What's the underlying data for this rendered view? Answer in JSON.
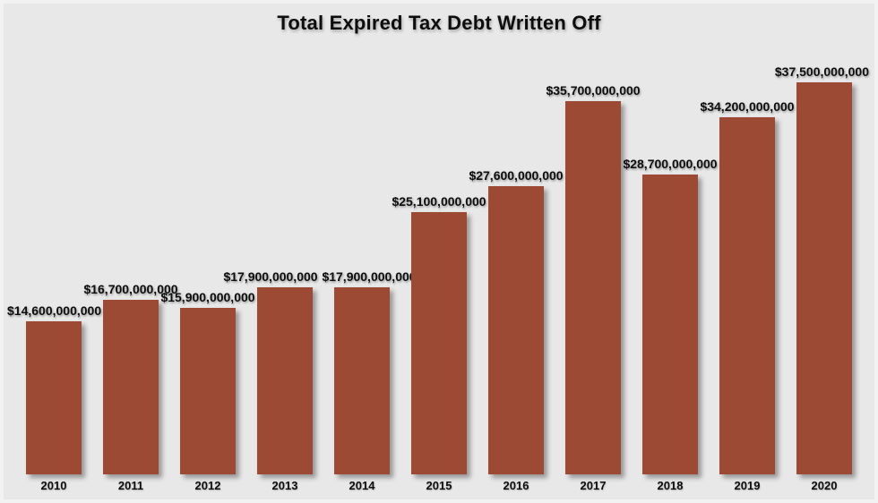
{
  "title": "Total Expired Tax Debt Written Off",
  "chart_data": {
    "type": "bar",
    "title": "Total Expired Tax Debt Written Off",
    "categories": [
      "2010",
      "2011",
      "2012",
      "2013",
      "2014",
      "2015",
      "2016",
      "2017",
      "2018",
      "2019",
      "2020"
    ],
    "values": [
      14600000000,
      16700000000,
      15900000000,
      17900000000,
      17900000000,
      25100000000,
      27600000000,
      35700000000,
      28700000000,
      34200000000,
      37500000000
    ],
    "value_labels": [
      "$14,600,000,000",
      "$16,700,000,000",
      "$15,900,000,000",
      "$17,900,000,000",
      "$17,900,000,000",
      "$25,100,000,000",
      "$27,600,000,000",
      "$35,700,000,000",
      "$28,700,000,000",
      "$34,200,000,000",
      "$37,500,000,000"
    ],
    "xlabel": "",
    "ylabel": "",
    "ylim": [
      0,
      37500000000
    ],
    "grid": false,
    "legend": "none",
    "axis_lines": false,
    "bar_color": "#9C4A33",
    "background_color": "#E8E8E8",
    "text_color": "#0d0d0d",
    "label_dx": [
      0,
      0,
      0,
      -16,
      8,
      0,
      0,
      0,
      0,
      0,
      0
    ]
  }
}
